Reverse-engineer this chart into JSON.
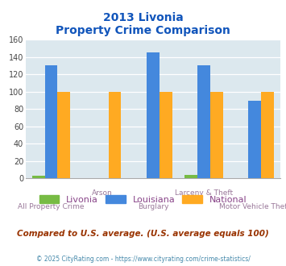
{
  "title_line1": "2013 Livonia",
  "title_line2": "Property Crime Comparison",
  "categories": [
    "All Property Crime",
    "Arson",
    "Burglary",
    "Larceny & Theft",
    "Motor Vehicle Theft"
  ],
  "livonia": [
    3,
    0,
    0,
    4,
    0
  ],
  "louisiana": [
    131,
    0,
    146,
    131,
    90
  ],
  "national": [
    100,
    100,
    100,
    100,
    100
  ],
  "livonia_color": "#77bb44",
  "louisiana_color": "#4488dd",
  "national_color": "#ffaa22",
  "bg_color": "#dce8ee",
  "title_color": "#1155bb",
  "xlabel_color": "#997799",
  "legend_label_color": "#884488",
  "footer_text": "Compared to U.S. average. (U.S. average equals 100)",
  "footer_color": "#993300",
  "copyright_text": "© 2025 CityRating.com - https://www.cityrating.com/crime-statistics/",
  "copyright_color": "#4488aa",
  "ylim": [
    0,
    160
  ],
  "yticks": [
    0,
    20,
    40,
    60,
    80,
    100,
    120,
    140,
    160
  ],
  "bar_width": 0.25,
  "group_positions": [
    0,
    1,
    2,
    3,
    4
  ]
}
